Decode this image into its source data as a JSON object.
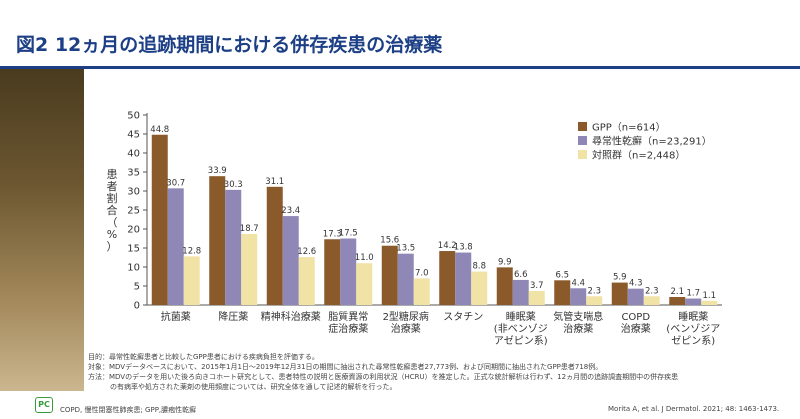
{
  "header": {
    "title": "図2 12ヵ月の追跡期間における併存疾患の治療薬"
  },
  "colors": {
    "title": "#1c3f86",
    "gpp": "#8b5a2b",
    "gpr": "#8f87b5",
    "control": "#f1e3a6"
  },
  "chart_data": {
    "type": "bar",
    "ylabel": "患者割合（%）",
    "ylim": [
      0,
      50
    ],
    "yticks": [
      0,
      5,
      10,
      15,
      20,
      25,
      30,
      35,
      40,
      45,
      50
    ],
    "grid": false,
    "legend_position": "top-right",
    "categories": [
      [
        "抗菌薬"
      ],
      [
        "降圧薬"
      ],
      [
        "精神科治療薬"
      ],
      [
        "脂質異常",
        "症治療薬"
      ],
      [
        "2型糖尿病",
        "治療薬"
      ],
      [
        "スタチン"
      ],
      [
        "睡眠薬",
        "(非ベンゾジ",
        "アゼピン系)"
      ],
      [
        "気管支喘息",
        "治療薬"
      ],
      [
        "COPD",
        "治療薬"
      ],
      [
        "睡眠薬",
        "(ベンゾジア",
        "ゼピン系)"
      ]
    ],
    "series": [
      {
        "name": "GPP（n=614）",
        "color": "#8b5a2b",
        "values": [
          44.8,
          33.9,
          31.1,
          17.3,
          15.6,
          14.2,
          9.9,
          6.5,
          5.9,
          2.1
        ]
      },
      {
        "name": "尋常性乾癬（n=23,291）",
        "color": "#8f87b5",
        "values": [
          30.7,
          30.3,
          23.4,
          17.5,
          13.5,
          13.8,
          6.6,
          4.4,
          4.3,
          1.7
        ]
      },
      {
        "name": "対照群（n=2,448）",
        "color": "#f1e3a6",
        "values": [
          12.8,
          18.7,
          12.6,
          11.0,
          7.0,
          8.8,
          3.7,
          2.3,
          2.3,
          1.1
        ]
      }
    ]
  },
  "notes": {
    "line1": "目的：尋常性乾癬患者と比較したGPP患者における疾病負担を評価する。",
    "line2": "対象：MDVデータベースにおいて、2015年1月1日～2019年12月31日の期間に抽出された尋常性乾癬患者27,773例、および同期間に抽出されたGPP患者718例。",
    "line3": "方法：MDVのデータを用いた後ろ向きコホート研究として、患者特性の説明と医療資源の利用状況（HCRU）を推定した。正式な統計解析は行わず、12ヵ月間の追跡調査期間中の併存疾患",
    "line4": "の有病率や処方された薬剤の使用頻度については、研究全体を通して記述的解析を行った。"
  },
  "footer": {
    "logo": "PC",
    "abbreviations": "COPD, 慢性閉塞性肺疾患; GPP,膿疱性乾癬",
    "citation": "Morita A, et al. J Dermatol. 2021; 48: 1463-1473."
  }
}
